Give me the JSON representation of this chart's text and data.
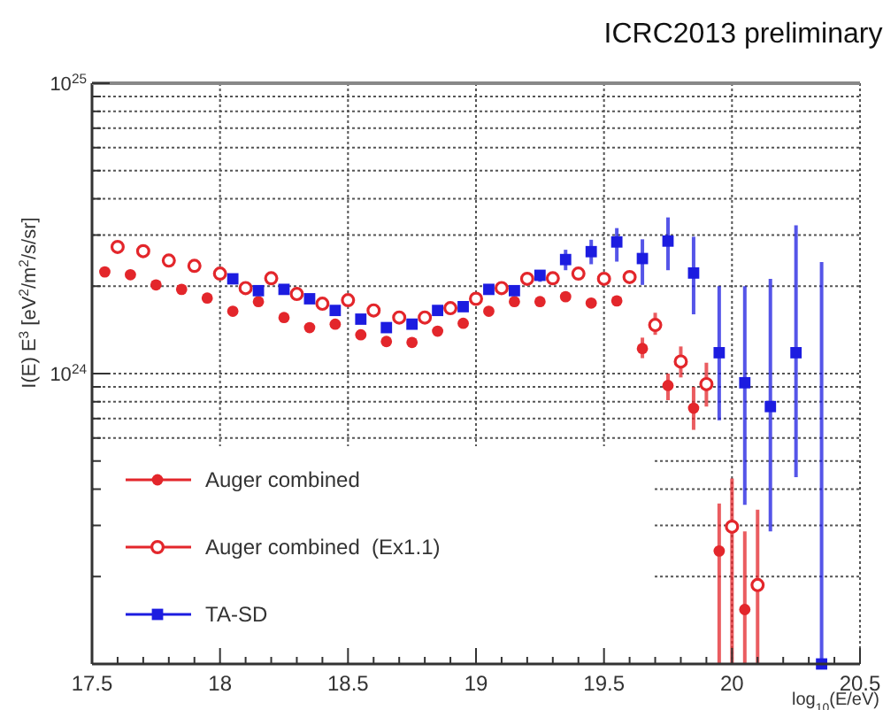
{
  "chart_data": {
    "type": "scatter",
    "title": "ICRC2013 preliminary",
    "xlabel": "log$_{10}$(E/eV)",
    "ylabel": "I(E) E$^{3}$ [eV$^{2}$/m$^{2}$/s/sr]",
    "xlim": [
      17.5,
      20.5
    ],
    "xticks": [
      17.5,
      18,
      18.5,
      19,
      19.5,
      20,
      20.5
    ],
    "ylim": [
      1e+23,
      1e+25
    ],
    "log": true,
    "grid": true,
    "legend": "bottom left",
    "yticks": [
      {
        "value": 1e+23,
        "label": null
      },
      {
        "value": 2e+23,
        "label": null
      },
      {
        "value": 3e+23,
        "label": null
      },
      {
        "value": 4e+23,
        "label": null
      },
      {
        "value": 5e+23,
        "label": null
      },
      {
        "value": 6e+23,
        "label": null
      },
      {
        "value": 7e+23,
        "label": null
      },
      {
        "value": 8e+23,
        "label": null
      },
      {
        "value": 9e+23,
        "label": null
      },
      {
        "value": 1e+24,
        "label": "10$^{24}$"
      },
      {
        "value": 2e+24,
        "label": null
      },
      {
        "value": 3e+24,
        "label": null
      },
      {
        "value": 4e+24,
        "label": null
      },
      {
        "value": 5e+24,
        "label": null
      },
      {
        "value": 6e+24,
        "label": null
      },
      {
        "value": 7e+24,
        "label": null
      },
      {
        "value": 8e+24,
        "label": null
      },
      {
        "value": 9e+24,
        "label": null
      },
      {
        "value": 1e+25,
        "label": "10$^{25}$"
      }
    ],
    "series": [
      {
        "name": "Auger combined",
        "color": "#e3262b",
        "marker": "circle",
        "x": [
          17.55,
          17.65,
          17.75,
          17.85,
          17.95,
          18.05,
          18.15,
          18.25,
          18.35,
          18.45,
          18.55,
          18.65,
          18.75,
          18.85,
          18.95,
          19.05,
          19.15,
          19.25,
          19.35,
          19.45,
          19.55,
          19.65,
          19.75,
          19.85,
          19.95,
          20.05
        ],
        "values": [
          2.24e+24,
          2.19e+24,
          2.02e+24,
          1.95e+24,
          1.82e+24,
          1.64e+24,
          1.77e+24,
          1.56e+24,
          1.44e+24,
          1.48e+24,
          1.36e+24,
          1.29e+24,
          1.28e+24,
          1.4e+24,
          1.49e+24,
          1.64e+24,
          1.77e+24,
          1.77e+24,
          1.84e+24,
          1.75e+24,
          1.78e+24,
          1.22e+24,
          9.1e+23,
          7.6e+23,
          2.45e+23,
          1.54e+23
        ],
        "errors": [
          null,
          null,
          null,
          null,
          null,
          null,
          null,
          null,
          null,
          null,
          null,
          null,
          null,
          null,
          null,
          null,
          null,
          null,
          null,
          null,
          null,
          [
            1.13e+24,
            1.33e+24
          ],
          [
            8.1e+23,
            1e+24
          ],
          [
            6.4e+23,
            9e+23
          ],
          [
            1e+23,
            3.57e+23
          ],
          [
            1e+23,
            2.86e+23
          ]
        ]
      },
      {
        "name": "Auger combined  (Ex1.1)",
        "color": "#e3262b",
        "marker": "circle-open",
        "x": [
          17.6,
          17.7,
          17.8,
          17.9,
          18.0,
          18.1,
          18.2,
          18.3,
          18.4,
          18.5,
          18.6,
          18.7,
          18.8,
          18.9,
          19.0,
          19.1,
          19.2,
          19.3,
          19.4,
          19.5,
          19.6,
          19.7,
          19.8,
          19.9,
          20.0,
          20.1
        ],
        "values": [
          2.73e+24,
          2.64e+24,
          2.45e+24,
          2.35e+24,
          2.21e+24,
          1.97e+24,
          2.13e+24,
          1.88e+24,
          1.74e+24,
          1.79e+24,
          1.65e+24,
          1.56e+24,
          1.56e+24,
          1.68e+24,
          1.81e+24,
          1.97e+24,
          2.12e+24,
          2.13e+24,
          2.21e+24,
          2.12e+24,
          2.15e+24,
          1.47e+24,
          1.1e+24,
          9.2e+23,
          2.97e+23,
          1.87e+23
        ],
        "errors": [
          null,
          null,
          null,
          null,
          null,
          null,
          null,
          null,
          null,
          null,
          null,
          null,
          null,
          null,
          null,
          null,
          null,
          null,
          null,
          null,
          null,
          [
            1.36e+24,
            1.62e+24
          ],
          [
            9.7e+23,
            1.24e+24
          ],
          [
            7.7e+23,
            1.09e+24
          ],
          [
            1e+23,
            4.35e+23
          ],
          [
            1e+23,
            3.4e+23
          ]
        ]
      },
      {
        "name": "TA-SD",
        "color": "#1c1ce0",
        "marker": "square",
        "x": [
          18.05,
          18.15,
          18.25,
          18.35,
          18.45,
          18.55,
          18.65,
          18.75,
          18.85,
          18.95,
          19.05,
          19.15,
          19.25,
          19.35,
          19.45,
          19.55,
          19.65,
          19.75,
          19.85,
          19.95,
          20.05,
          20.15,
          20.25,
          20.35
        ],
        "values": [
          2.12e+24,
          1.93e+24,
          1.95e+24,
          1.81e+24,
          1.65e+24,
          1.54e+24,
          1.44e+24,
          1.48e+24,
          1.65e+24,
          1.7e+24,
          1.95e+24,
          1.93e+24,
          2.18e+24,
          2.47e+24,
          2.63e+24,
          2.84e+24,
          2.49e+24,
          2.86e+24,
          2.22e+24,
          1.18e+24,
          9.3e+23,
          7.7e+23,
          1.18e+24,
          1e+23
        ],
        "errors": [
          null,
          null,
          null,
          null,
          null,
          null,
          null,
          null,
          null,
          null,
          null,
          null,
          [
            2.07e+24,
            2.27e+24
          ],
          [
            2.27e+24,
            2.67e+24
          ],
          [
            2.38e+24,
            2.89e+24
          ],
          [
            2.43e+24,
            3.17e+24
          ],
          [
            2.02e+24,
            2.9e+24
          ],
          [
            2.27e+24,
            3.45e+24
          ],
          [
            1.6e+24,
            2.96e+24
          ],
          [
            6.9e+23,
            2e+24
          ],
          [
            3.53e+23,
            2e+24
          ],
          [
            2.86e+23,
            2.12e+24
          ],
          [
            4.4e+23,
            3.24e+24
          ],
          [
            1e+23,
            2.42e+24
          ]
        ]
      }
    ]
  }
}
